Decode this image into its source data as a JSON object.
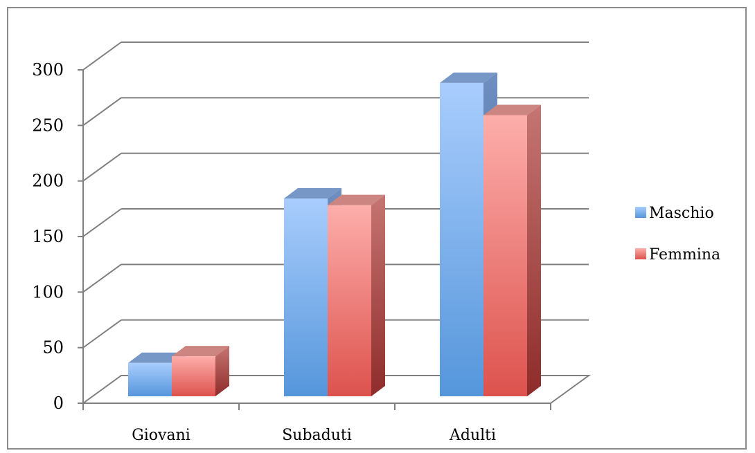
{
  "chart_data": {
    "type": "bar",
    "style": "3d-clustered-column",
    "title": "",
    "xlabel": "",
    "ylabel": "",
    "categories": [
      "Giovani",
      "Subaduti",
      "Adulti"
    ],
    "series": [
      {
        "name": "Maschio",
        "values": [
          30,
          178,
          282
        ],
        "color": "#5b9bd5"
      },
      {
        "name": "Femmina",
        "values": [
          36,
          172,
          253
        ],
        "color": "#e05a55"
      }
    ],
    "ylim": [
      0,
      300
    ],
    "yticks": [
      "0",
      "50",
      "100",
      "150",
      "200",
      "250",
      "300"
    ],
    "grid": true,
    "legend_position": "right"
  }
}
